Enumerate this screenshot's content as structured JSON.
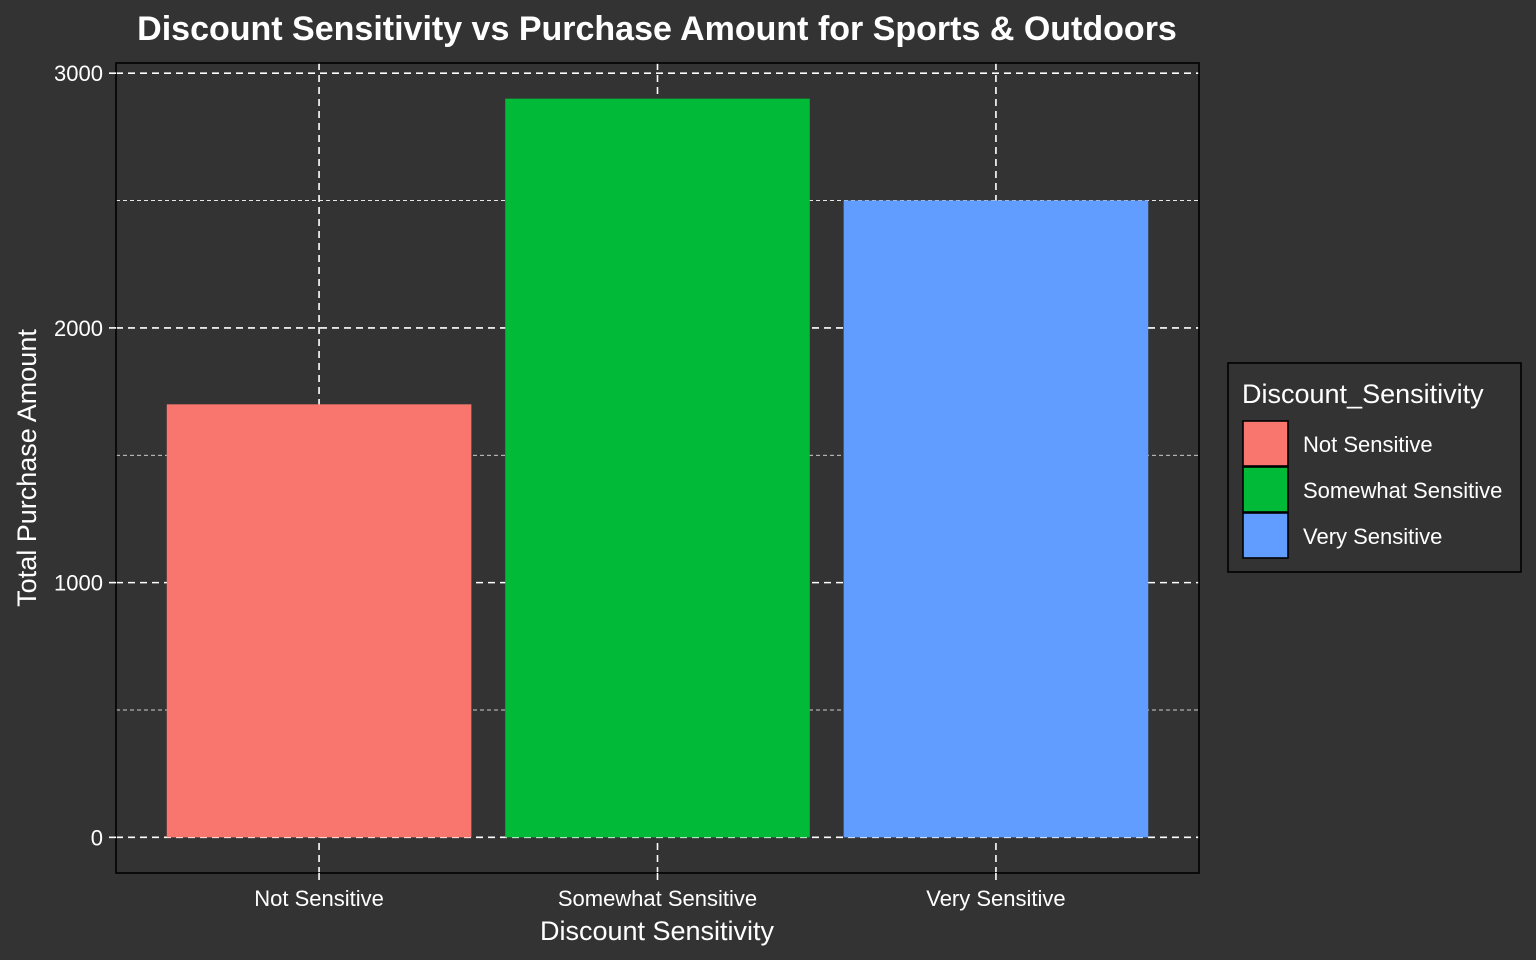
{
  "chart_data": {
    "type": "bar",
    "title": "Discount Sensitivity vs Purchase Amount for Sports & Outdoors",
    "xlabel": "Discount Sensitivity",
    "ylabel": "Total Purchase Amount",
    "categories": [
      "Not Sensitive",
      "Somewhat Sensitive",
      "Very Sensitive"
    ],
    "values": [
      1700,
      2900,
      2500
    ],
    "colors": [
      "#F8766D",
      "#00BA38",
      "#619CFF"
    ],
    "ylim": [
      -140,
      3040
    ],
    "yticks": [
      0,
      1000,
      2000,
      3000
    ],
    "yticks_minor": [
      500,
      1500,
      2500
    ],
    "grid": true,
    "legend": {
      "title": "Discount_Sensitivity",
      "position": "right",
      "entries": [
        "Not Sensitive",
        "Somewhat Sensitive",
        "Very Sensitive"
      ]
    },
    "background": "#333333",
    "text_color": "#ffffff"
  }
}
